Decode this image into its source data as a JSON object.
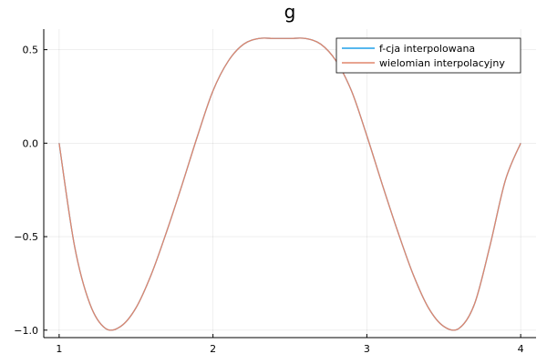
{
  "chart_data": {
    "type": "line",
    "title": "g",
    "xlabel": "",
    "ylabel": "",
    "xlim": [
      0.9,
      4.1
    ],
    "ylim": [
      -1.04,
      0.61
    ],
    "xticks": [
      1,
      2,
      3,
      4
    ],
    "xtick_labels": [
      "1",
      "2",
      "3",
      "4"
    ],
    "yticks": [
      -1.0,
      -0.5,
      0.0,
      0.5
    ],
    "ytick_labels": [
      "−1.0",
      "−0.5",
      "0.0",
      "0.5"
    ],
    "grid": true,
    "legend_position": "top-right",
    "series": [
      {
        "name": "f-cja interpolowana",
        "color": "#1f9fe8",
        "x": [
          1.0,
          1.1,
          1.2,
          1.3,
          1.4,
          1.5,
          1.6,
          1.7,
          1.8,
          1.9,
          2.0,
          2.1,
          2.2,
          2.3,
          2.4,
          2.5,
          2.6,
          2.7,
          2.8,
          2.9,
          3.0,
          3.1,
          3.2,
          3.3,
          3.4,
          3.5,
          3.6,
          3.7,
          3.8,
          3.9,
          4.0
        ],
        "y": [
          0.0,
          -0.55,
          -0.86,
          -0.99,
          -0.98,
          -0.88,
          -0.7,
          -0.47,
          -0.22,
          0.04,
          0.28,
          0.44,
          0.53,
          0.56,
          0.56,
          0.56,
          0.56,
          0.53,
          0.44,
          0.28,
          0.04,
          -0.22,
          -0.47,
          -0.7,
          -0.88,
          -0.98,
          -0.99,
          -0.86,
          -0.55,
          -0.2,
          0.0
        ]
      },
      {
        "name": "wielomian interpolacyjny",
        "color": "#e0866c",
        "x": [
          1.0,
          1.1,
          1.2,
          1.3,
          1.4,
          1.5,
          1.6,
          1.7,
          1.8,
          1.9,
          2.0,
          2.1,
          2.2,
          2.3,
          2.4,
          2.5,
          2.6,
          2.7,
          2.8,
          2.9,
          3.0,
          3.1,
          3.2,
          3.3,
          3.4,
          3.5,
          3.6,
          3.7,
          3.8,
          3.9,
          4.0
        ],
        "y": [
          0.0,
          -0.55,
          -0.86,
          -0.99,
          -0.98,
          -0.88,
          -0.7,
          -0.47,
          -0.22,
          0.04,
          0.28,
          0.44,
          0.53,
          0.56,
          0.56,
          0.56,
          0.56,
          0.53,
          0.44,
          0.28,
          0.04,
          -0.22,
          -0.47,
          -0.7,
          -0.88,
          -0.98,
          -0.99,
          -0.86,
          -0.55,
          -0.2,
          0.0
        ]
      }
    ]
  }
}
